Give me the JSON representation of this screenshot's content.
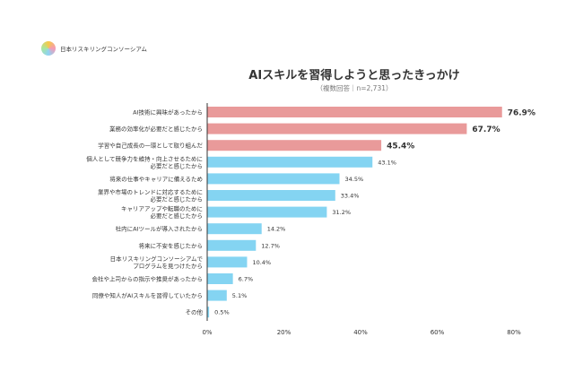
{
  "brand": "日本リスキリングコンソーシアム",
  "chart_data": {
    "type": "bar",
    "orientation": "horizontal",
    "title": "AIスキルを習得しようと思ったきっかけ",
    "subtitle": "（複数回答｜n=2,731）",
    "categories": [
      [
        "AI技術に興味があったから"
      ],
      [
        "業務の効率化が必要だと感じたから"
      ],
      [
        "学習や自己成長の一環として取り組んだ"
      ],
      [
        "個人として競争力を維持・向上させるために",
        "必要だと感じたから"
      ],
      [
        "将来の仕事やキャリアに備えるため"
      ],
      [
        "業界や市場のトレンドに対応するために",
        "必要だと感じたから"
      ],
      [
        "キャリアアップや転職のために",
        "必要だと感じたから"
      ],
      [
        "社内にAIツールが導入されたから"
      ],
      [
        "将来に不安を感じたから"
      ],
      [
        "日本リスキリングコンソーシアムで",
        "プログラムを見つけたから"
      ],
      [
        "会社や上司からの指示や推奨があったから"
      ],
      [
        "同僚や知人がAIスキルを習得していたから"
      ],
      [
        "その他"
      ]
    ],
    "values": [
      76.9,
      67.7,
      45.4,
      43.1,
      34.5,
      33.4,
      31.2,
      14.2,
      12.7,
      10.4,
      6.7,
      5.1,
      0.5
    ],
    "labels": [
      "76.9%",
      "67.7%",
      "45.4%",
      "43.1%",
      "34.5%",
      "33.4%",
      "31.2%",
      "14.2%",
      "12.7%",
      "10.4%",
      "6.7%",
      "5.1%",
      "0.5%"
    ],
    "highlight_top": 3,
    "xlim": [
      0,
      80
    ],
    "xticks": [
      "0%",
      "20%",
      "40%",
      "60%",
      "80%"
    ],
    "colors": {
      "highlight": "#e99a9a",
      "normal": "#84d4f2"
    }
  }
}
